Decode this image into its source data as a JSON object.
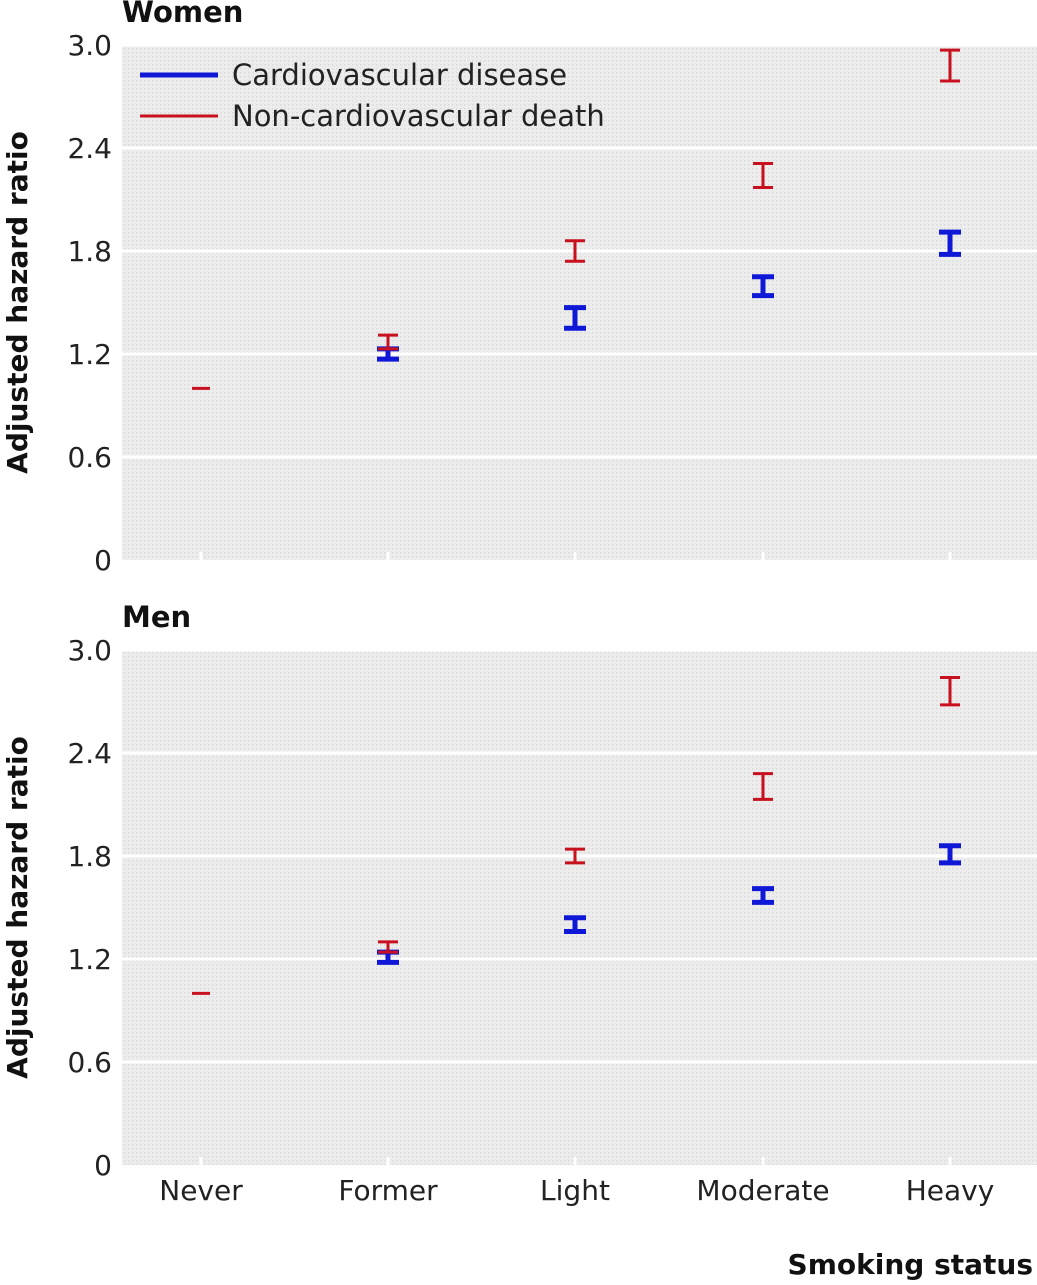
{
  "figure": {
    "xlabel": "Smoking status",
    "legend": [
      {
        "label": "Cardiovascular disease",
        "color": "#1018d8"
      },
      {
        "label": "Non-cardiovascular death",
        "color": "#c8101e"
      }
    ]
  },
  "chart_data": [
    {
      "type": "scatter",
      "title": "Women",
      "ylabel": "Adjusted hazard ratio",
      "xlabel": "",
      "categories": [
        "Never",
        "Former",
        "Light",
        "Moderate",
        "Heavy"
      ],
      "ylim": [
        0,
        3.0
      ],
      "yticks": [
        "0",
        "0.6",
        "1.2",
        "1.8",
        "2.4",
        "3.0"
      ],
      "grid": true,
      "legend_position": "top-left",
      "series": [
        {
          "name": "Cardiovascular disease",
          "color": "#1018d8",
          "values": [
            null,
            1.2,
            1.41,
            1.59,
            1.84
          ],
          "lower": [
            null,
            1.17,
            1.35,
            1.54,
            1.78
          ],
          "upper": [
            null,
            1.23,
            1.47,
            1.65,
            1.91
          ]
        },
        {
          "name": "Non-cardiovascular death",
          "color": "#c8101e",
          "values": [
            1.0,
            1.27,
            1.8,
            2.24,
            2.88
          ],
          "lower": [
            1.0,
            1.23,
            1.74,
            2.17,
            2.79
          ],
          "upper": [
            1.0,
            1.31,
            1.86,
            2.31,
            2.97
          ]
        }
      ]
    },
    {
      "type": "scatter",
      "title": "Men",
      "ylabel": "Adjusted hazard ratio",
      "xlabel": "Smoking status",
      "categories": [
        "Never",
        "Former",
        "Light",
        "Moderate",
        "Heavy"
      ],
      "ylim": [
        0,
        3.0
      ],
      "yticks": [
        "0",
        "0.6",
        "1.2",
        "1.8",
        "2.4",
        "3.0"
      ],
      "grid": true,
      "series": [
        {
          "name": "Cardiovascular disease",
          "color": "#1018d8",
          "values": [
            null,
            1.21,
            1.4,
            1.57,
            1.81
          ],
          "lower": [
            null,
            1.18,
            1.36,
            1.53,
            1.76
          ],
          "upper": [
            null,
            1.24,
            1.44,
            1.61,
            1.86
          ]
        },
        {
          "name": "Non-cardiovascular death",
          "color": "#c8101e",
          "values": [
            1.0,
            1.27,
            1.8,
            2.2,
            2.76
          ],
          "lower": [
            1.0,
            1.24,
            1.76,
            2.13,
            2.68
          ],
          "upper": [
            1.0,
            1.3,
            1.84,
            2.28,
            2.84
          ]
        }
      ]
    }
  ]
}
